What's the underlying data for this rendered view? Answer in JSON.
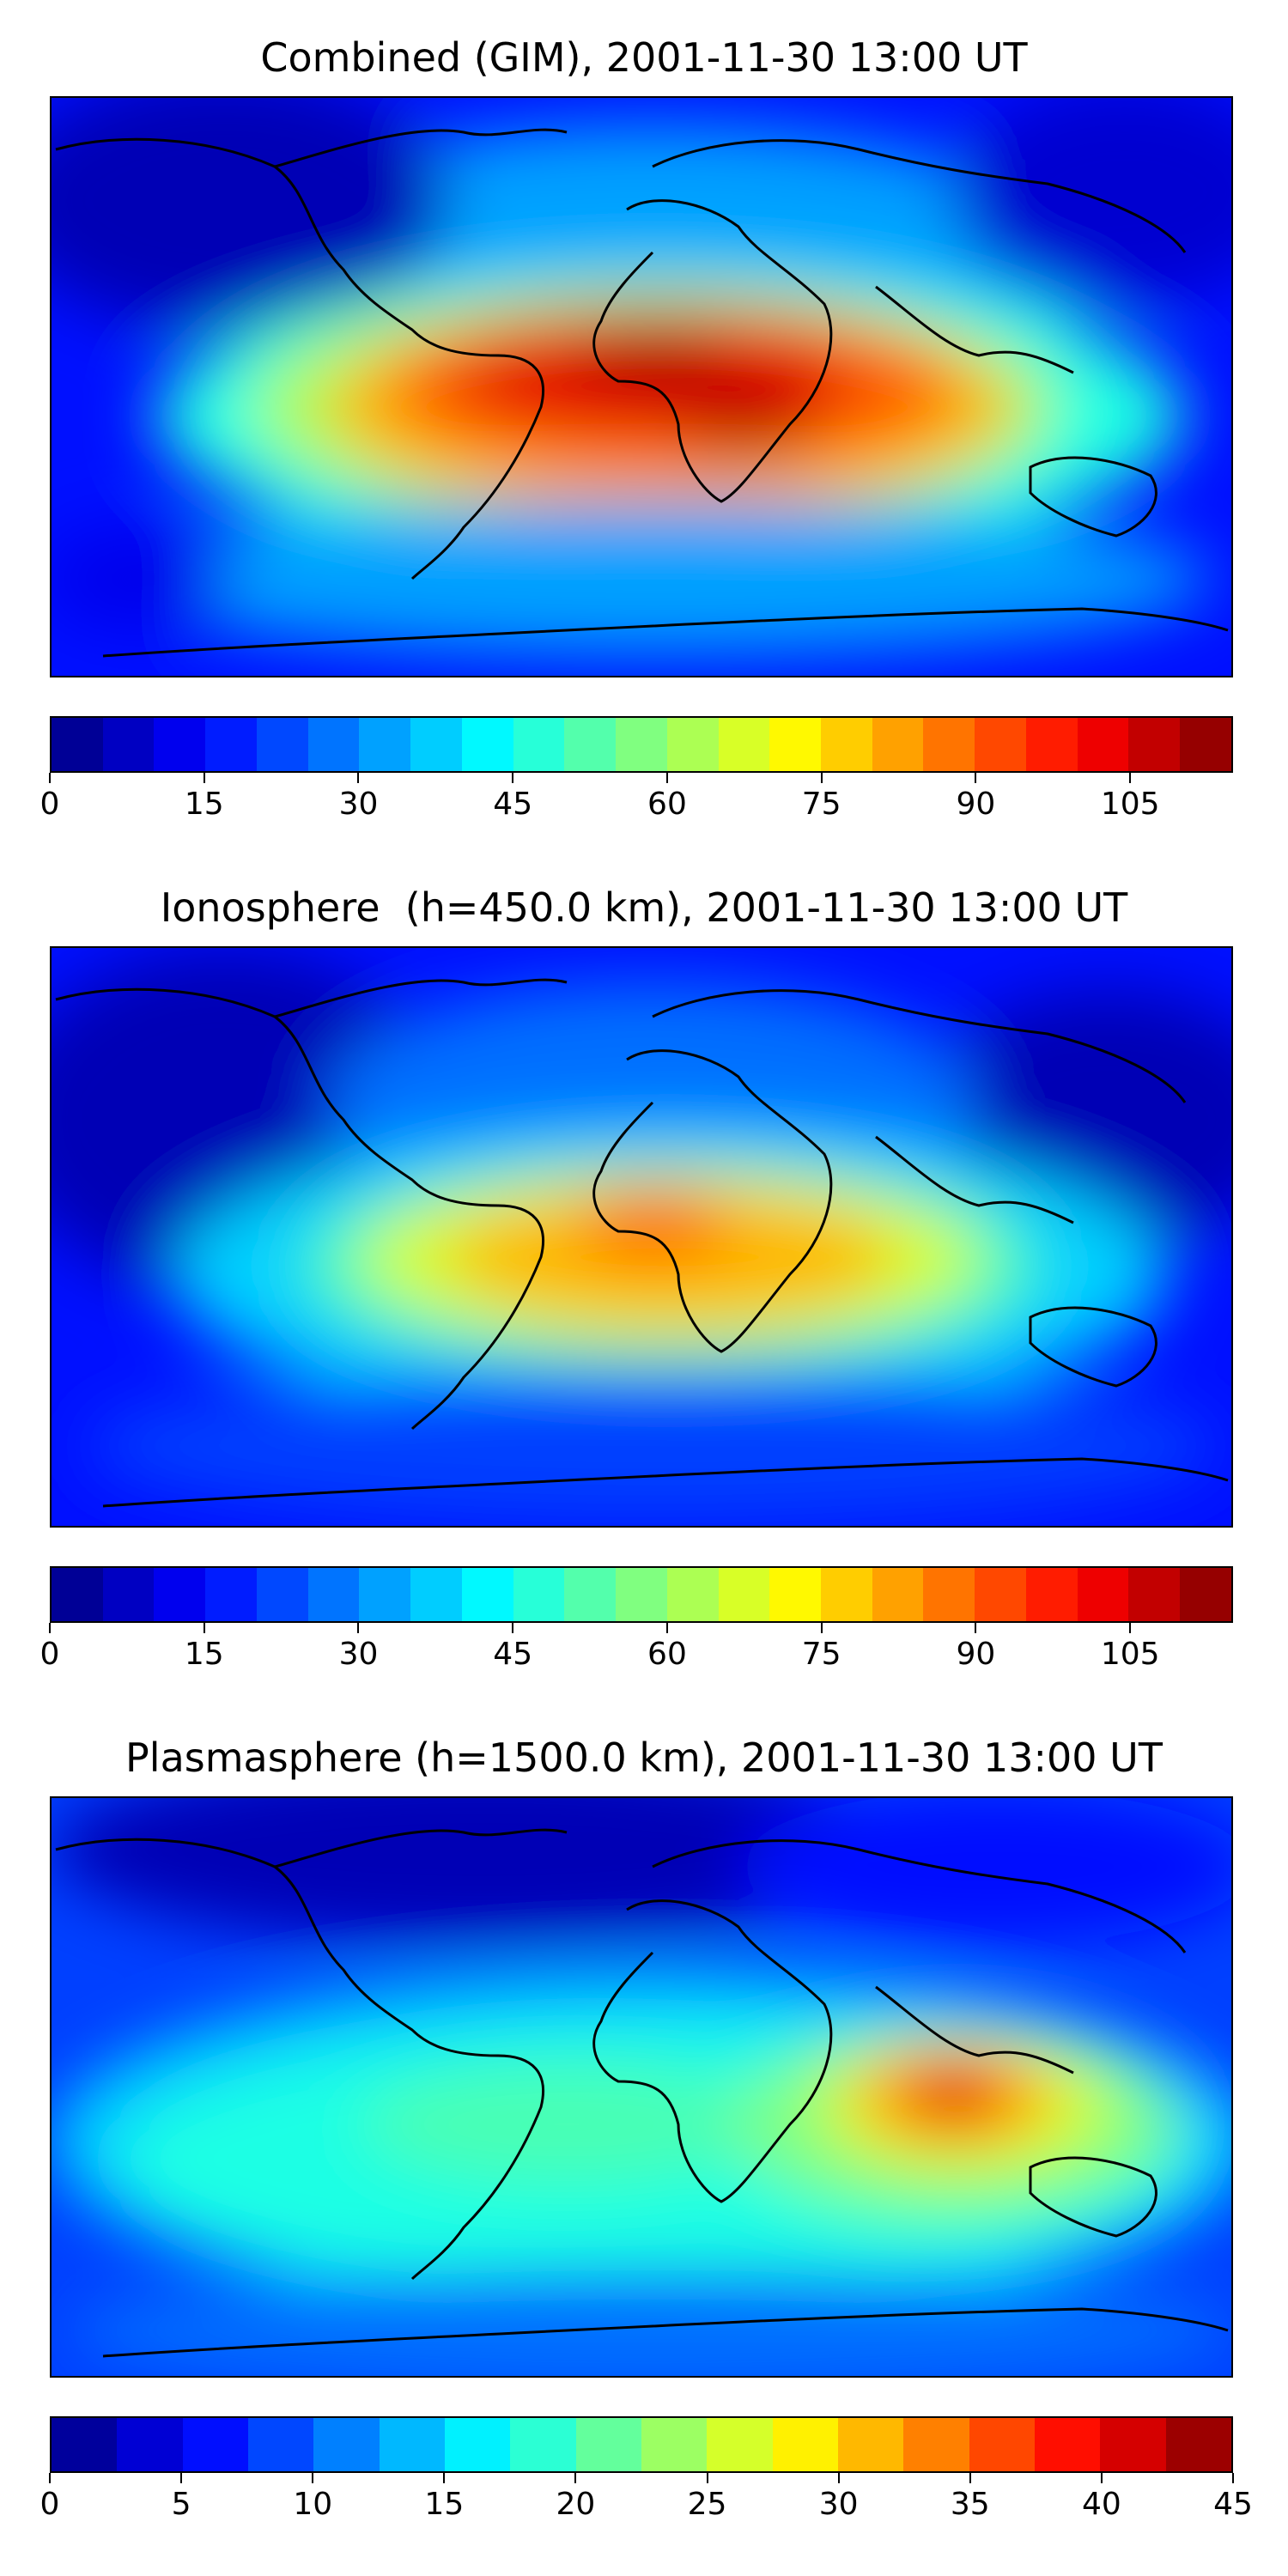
{
  "panels": [
    {
      "title": "Combined (GIM), 2001-11-30 13:00 UT",
      "colorbar": {
        "min": 0,
        "max": 115,
        "step": 5,
        "tick_labels": [
          "0",
          "15",
          "30",
          "45",
          "60",
          "75",
          "90",
          "105"
        ],
        "tick_values": [
          0,
          15,
          30,
          45,
          60,
          75,
          90,
          105
        ]
      }
    },
    {
      "title": "Ionosphere  (h=450.0 km), 2001-11-30 13:00 UT",
      "colorbar": {
        "min": 0,
        "max": 115,
        "step": 5,
        "tick_labels": [
          "0",
          "15",
          "30",
          "45",
          "60",
          "75",
          "90",
          "105"
        ],
        "tick_values": [
          0,
          15,
          30,
          45,
          60,
          75,
          90,
          105
        ]
      }
    },
    {
      "title": "Plasmasphere (h=1500.0 km), 2001-11-30 13:00 UT",
      "colorbar": {
        "min": 0,
        "max": 45,
        "step": 2.5,
        "tick_labels": [
          "0",
          "5",
          "10",
          "15",
          "20",
          "25",
          "30",
          "35",
          "40",
          "45"
        ],
        "tick_values": [
          0,
          5,
          10,
          15,
          20,
          25,
          30,
          35,
          40,
          45
        ]
      }
    }
  ],
  "colormap": "jet",
  "jet_palette": [
    "#00007f",
    "#0000b5",
    "#0000ec",
    "#0010ff",
    "#0040ff",
    "#0070ff",
    "#00a0ff",
    "#00d0ff",
    "#1affe4",
    "#4affb4",
    "#7bff84",
    "#abff54",
    "#d8ff27",
    "#ffe600",
    "#ffb600",
    "#ff8900",
    "#ff5900",
    "#ff2a00",
    "#e30000",
    "#ac0000",
    "#7f0000",
    "#7f0000",
    "#7f0000"
  ]
}
